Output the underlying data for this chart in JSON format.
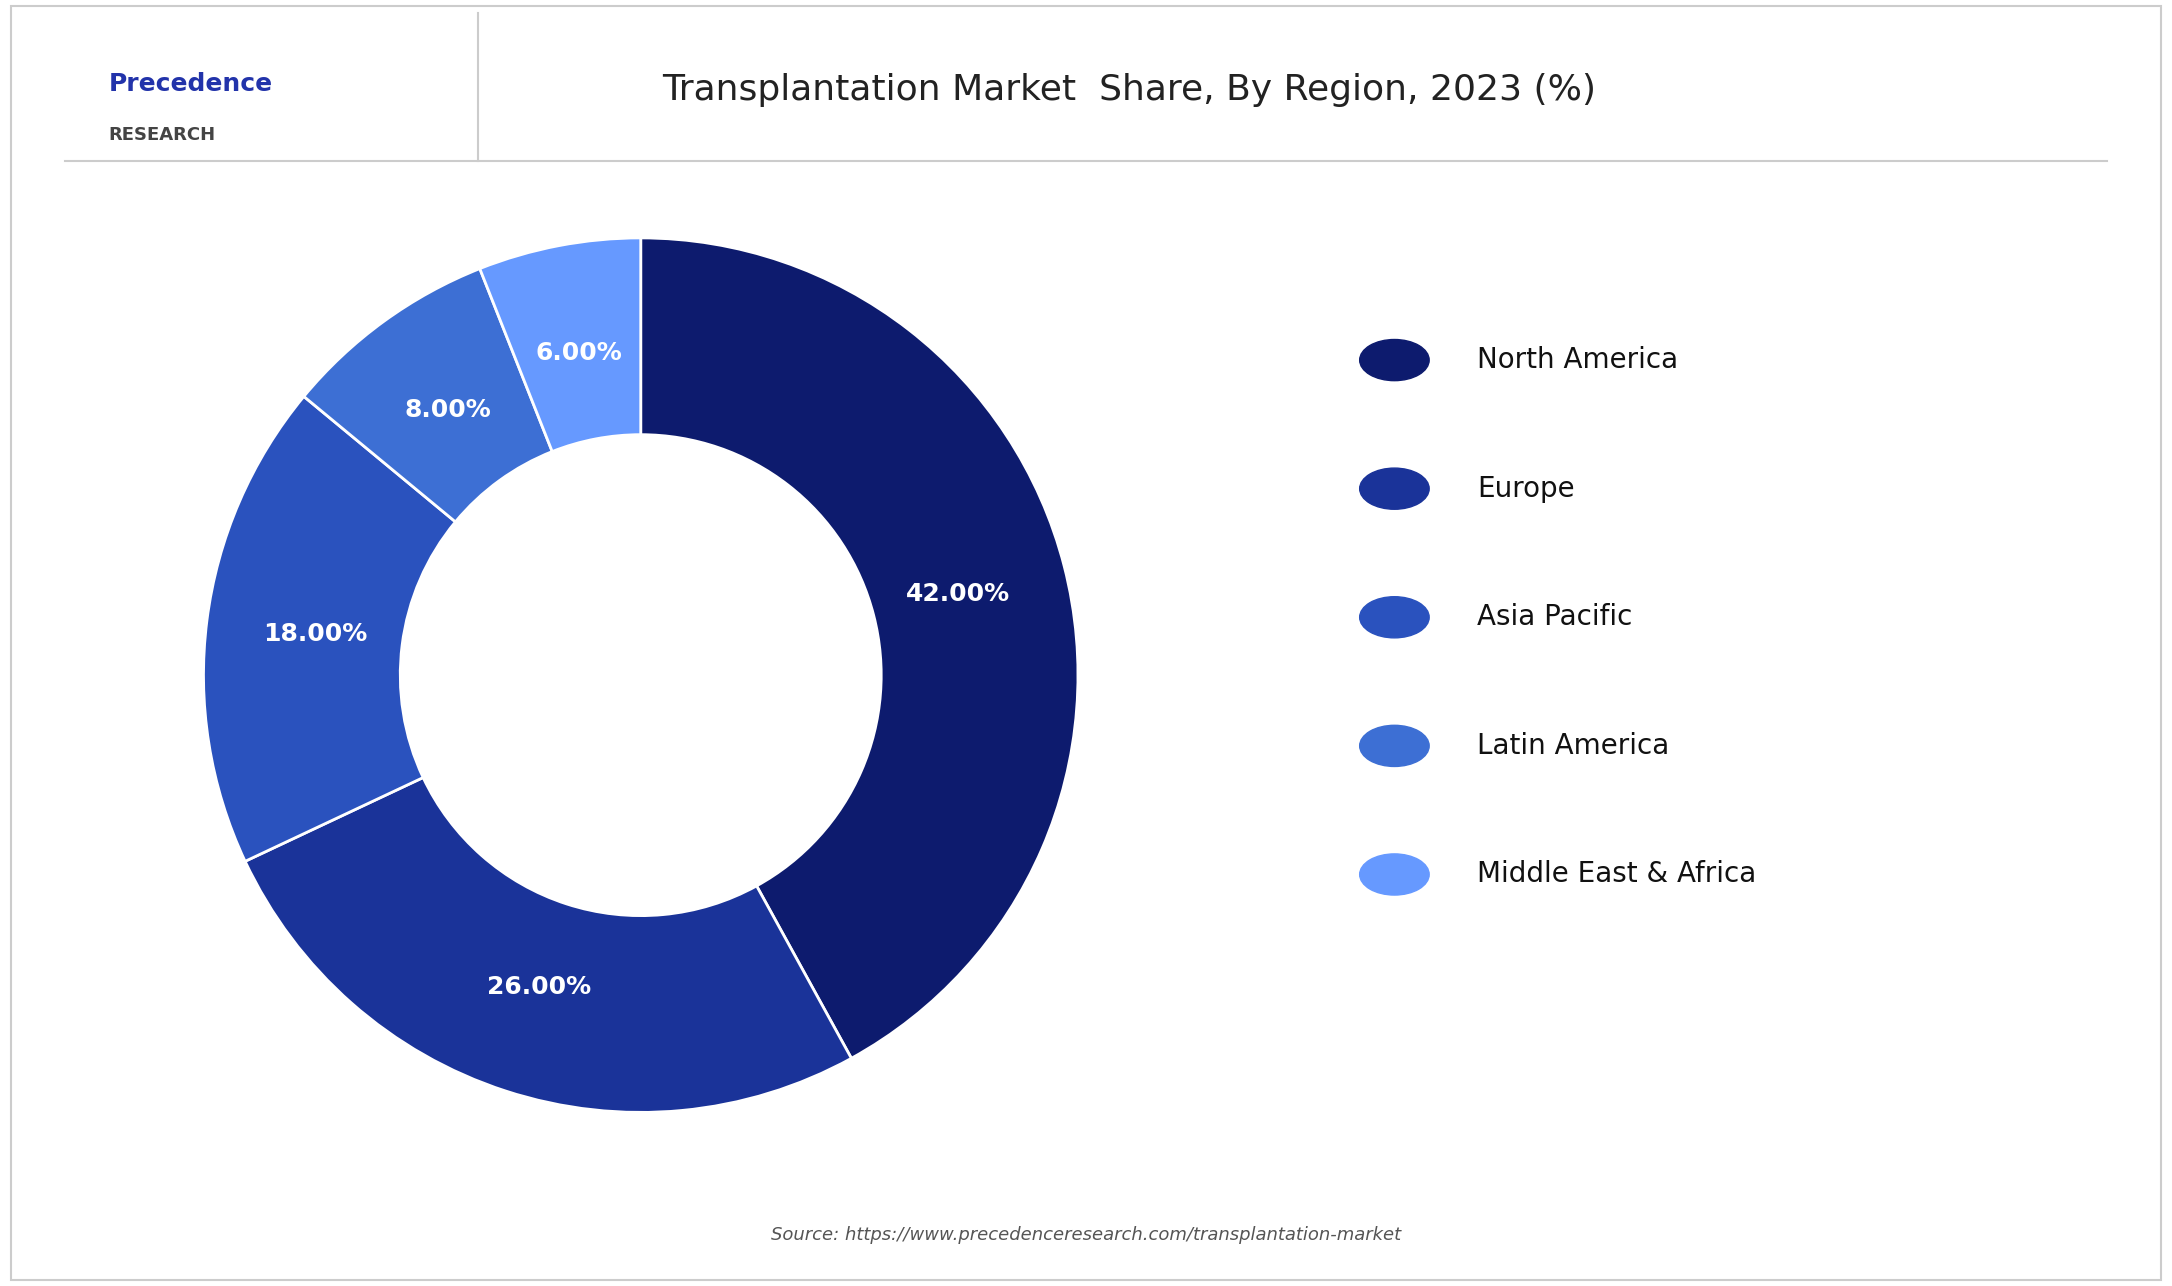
{
  "title": "Transplantation Market  Share, By Region, 2023 (%)",
  "labels": [
    "North America",
    "Europe",
    "Asia Pacific",
    "Latin America",
    "Middle East & Africa"
  ],
  "values": [
    42,
    26,
    18,
    8,
    6
  ],
  "colors": [
    "#0d1b6e",
    "#1a3399",
    "#2a52be",
    "#3d6fd4",
    "#6699ff"
  ],
  "label_texts": [
    "42.00%",
    "26.00%",
    "18.00%",
    "8.00%",
    "6.00%"
  ],
  "source_text": "Source: https://www.precedenceresearch.com/transplantation-market",
  "background_color": "#ffffff",
  "title_fontsize": 26,
  "legend_fontsize": 20,
  "label_fontsize": 18
}
